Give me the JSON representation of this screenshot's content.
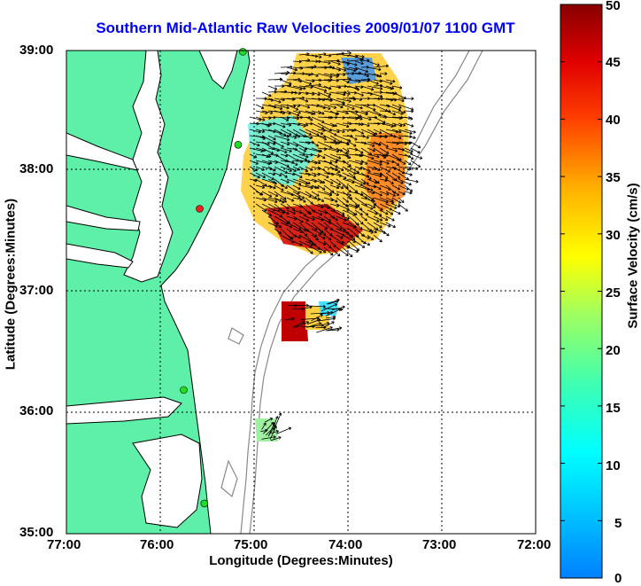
{
  "title": "Southern Mid-Atlantic Raw Velocities 2009/01/07 1100 GMT",
  "xlabel": "Longitude (Degrees:Minutes)",
  "ylabel": "Latitude (Degrees:Minutes)",
  "colorbar_label": "Surface Velocity (cm/s)",
  "x_ticks": [
    "77:00",
    "76:00",
    "75:00",
    "74:00",
    "73:00",
    "72:00"
  ],
  "y_ticks": [
    "39:00",
    "38:00",
    "37:00",
    "36:00",
    "35:00"
  ],
  "colorbar_ticks": [
    "50",
    "45",
    "40",
    "35",
    "30",
    "25",
    "20",
    "15",
    "10",
    "5",
    "0"
  ],
  "colors": {
    "land": "#5ef0a8",
    "coast": "#000000",
    "bathymetry": "#888888",
    "grid": "#000000",
    "title": "#0000ff",
    "station": "#22dd22",
    "station_alt": "#ee2222"
  },
  "map_extent": {
    "lon": [
      -77,
      -72
    ],
    "lat": [
      35,
      39
    ]
  },
  "colorbar_range": [
    0,
    50
  ],
  "stations": [
    {
      "lon": -75.12,
      "lat": 38.99,
      "color": "station"
    },
    {
      "lon": -75.17,
      "lat": 38.22,
      "color": "station"
    },
    {
      "lon": -75.58,
      "lat": 37.69,
      "color": "station_alt"
    },
    {
      "lon": -75.75,
      "lat": 36.19,
      "color": "station"
    },
    {
      "lon": -75.53,
      "lat": 35.25,
      "color": "station"
    }
  ]
}
